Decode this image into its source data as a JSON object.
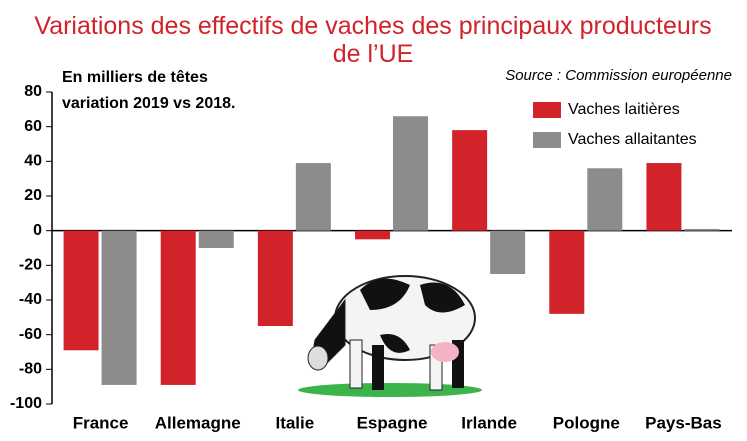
{
  "chart_data": {
    "type": "bar",
    "title": "Variations des effectifs de vaches des principaux producteurs de l’UE",
    "subtitle": [
      "En milliers de têtes",
      "variation 2019 vs 2018."
    ],
    "source": "Source : Commission européenne",
    "categories": [
      "France",
      "Allemagne",
      "Italie",
      "Espagne",
      "Irlande",
      "Pologne",
      "Pays-Bas"
    ],
    "series": [
      {
        "name": "Vaches laitières",
        "color": "#d2232a",
        "values": [
          -69,
          -89,
          -55,
          -5,
          58,
          -48,
          39
        ]
      },
      {
        "name": "Vaches allaitantes",
        "color": "#8c8c8c",
        "values": [
          -89,
          -10,
          39,
          66,
          -25,
          36,
          1
        ]
      }
    ],
    "ylim": [
      -100,
      80
    ],
    "yticks": [
      -100,
      -80,
      -60,
      -40,
      -20,
      0,
      20,
      40,
      60,
      80
    ],
    "legend": "top-right"
  }
}
